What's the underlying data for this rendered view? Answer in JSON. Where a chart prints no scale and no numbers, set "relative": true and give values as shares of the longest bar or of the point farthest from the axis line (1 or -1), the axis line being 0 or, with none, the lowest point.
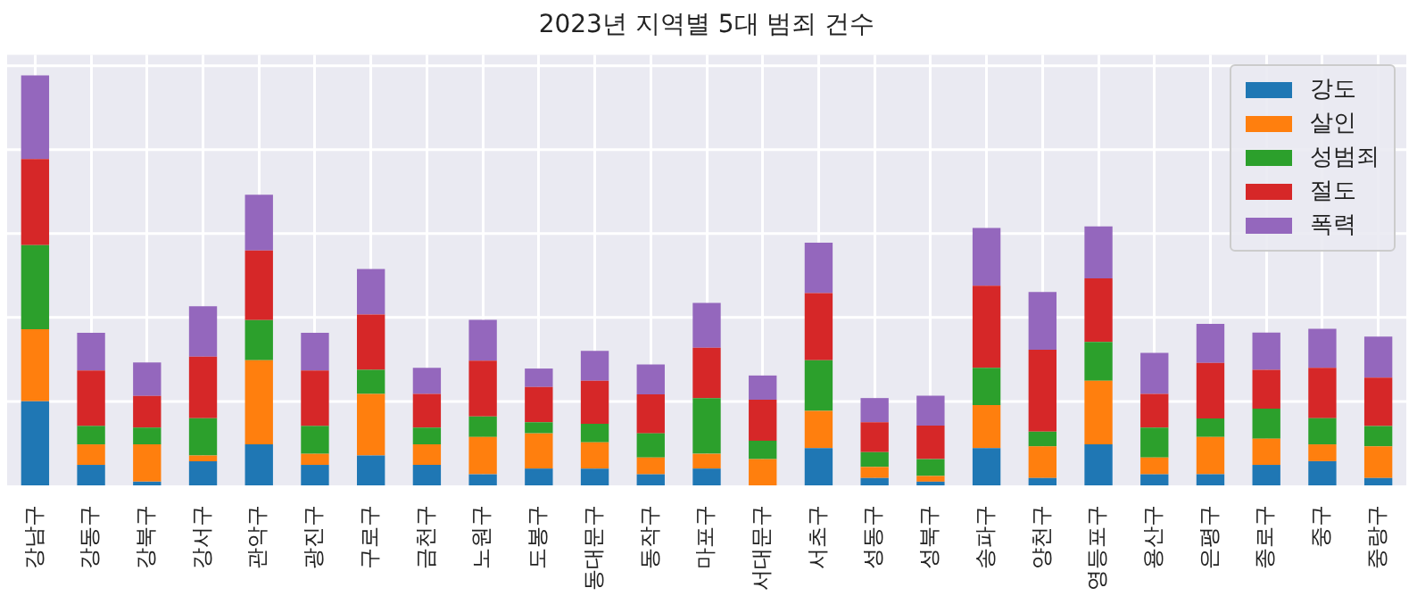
{
  "chart_data": {
    "type": "bar",
    "title": "2023년 지역별 5대 범죄 건수",
    "stacked": true,
    "relative": true,
    "grid": true,
    "legend": "top right",
    "categories": [
      "강남구",
      "강동구",
      "강북구",
      "강서구",
      "관악구",
      "광진구",
      "구로구",
      "금천구",
      "노원구",
      "도봉구",
      "동대문구",
      "동작구",
      "마포구",
      "서대문구",
      "서초구",
      "성동구",
      "성북구",
      "송파구",
      "양천구",
      "영등포구",
      "용산구",
      "은평구",
      "종로구",
      "중구",
      "중랑구"
    ],
    "series": [
      {
        "name": "강도",
        "color": "#1f77b4",
        "values": [
          0.205,
          0.05,
          0.009,
          0.059,
          0.1,
          0.05,
          0.073,
          0.05,
          0.027,
          0.041,
          0.041,
          0.027,
          0.041,
          0,
          0.091,
          0.018,
          0.009,
          0.091,
          0.018,
          0.1,
          0.027,
          0.027,
          0.05,
          0.059,
          0.018
        ]
      },
      {
        "name": "살인",
        "color": "#ff7f0e",
        "values": [
          0.176,
          0.05,
          0.091,
          0.014,
          0.205,
          0.027,
          0.15,
          0.05,
          0.091,
          0.086,
          0.064,
          0.041,
          0.036,
          0.064,
          0.091,
          0.027,
          0.014,
          0.105,
          0.077,
          0.155,
          0.041,
          0.091,
          0.064,
          0.041,
          0.077
        ]
      },
      {
        "name": "성범죄",
        "color": "#2ca02c",
        "values": [
          0.205,
          0.045,
          0.041,
          0.091,
          0.098,
          0.068,
          0.059,
          0.041,
          0.05,
          0.027,
          0.045,
          0.059,
          0.136,
          0.045,
          0.123,
          0.036,
          0.041,
          0.091,
          0.036,
          0.095,
          0.073,
          0.045,
          0.073,
          0.064,
          0.05
        ]
      },
      {
        "name": "절도",
        "color": "#d62728",
        "values": [
          0.21,
          0.135,
          0.077,
          0.15,
          0.17,
          0.135,
          0.135,
          0.082,
          0.136,
          0.086,
          0.105,
          0.095,
          0.123,
          0.1,
          0.164,
          0.073,
          0.082,
          0.2,
          0.2,
          0.155,
          0.082,
          0.136,
          0.095,
          0.123,
          0.118
        ]
      },
      {
        "name": "폭력",
        "color": "#9467bd",
        "values": [
          0.204,
          0.092,
          0.082,
          0.123,
          0.136,
          0.092,
          0.111,
          0.064,
          0.1,
          0.045,
          0.073,
          0.073,
          0.109,
          0.059,
          0.123,
          0.059,
          0.073,
          0.141,
          0.141,
          0.127,
          0.1,
          0.095,
          0.091,
          0.095,
          0.1
        ]
      }
    ]
  }
}
